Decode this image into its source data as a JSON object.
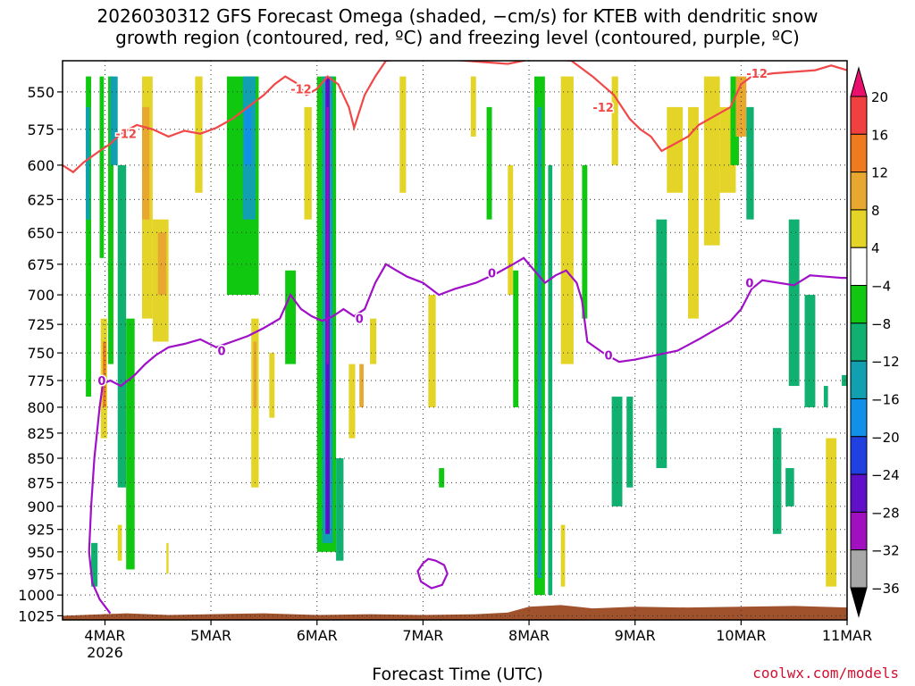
{
  "chart_data": {
    "type": "heatmap",
    "title_line1": "2026030312 GFS Forecast Omega (shaded, −cm/s) for KTEB with dendritic snow",
    "title_line2": "growth region (contoured, red, ºC) and freezing level (contoured, purple, ºC)",
    "xlabel": "Forecast Time (UTC)",
    "credit": "coolwx.com/models",
    "x_ticks": [
      "4MAR",
      "5MAR",
      "6MAR",
      "7MAR",
      "8MAR",
      "9MAR",
      "10MAR",
      "11MAR"
    ],
    "x_year_label": "2026",
    "xlim_days": [
      3.6,
      11.0
    ],
    "y_ticks": [
      550,
      575,
      600,
      625,
      650,
      675,
      700,
      725,
      750,
      775,
      800,
      825,
      850,
      875,
      900,
      925,
      950,
      975,
      1000,
      1025
    ],
    "ylim_hpa": [
      1030,
      530
    ],
    "y_scale": "log-pressure",
    "grid": "dotted",
    "colorbar": {
      "labels": [
        "20",
        "16",
        "12",
        "8",
        "4",
        "−4",
        "−8",
        "−12",
        "−16",
        "−20",
        "−24",
        "−28",
        "−32",
        "−36"
      ],
      "colors": [
        "#e8106c",
        "#f04040",
        "#f07a20",
        "#e8a830",
        "#e4d428",
        "#ffffff",
        "#10c810",
        "#10b070",
        "#10a0b0",
        "#1090e8",
        "#2040e0",
        "#6010c8",
        "#a010c0",
        "#a8a8a8",
        "#000000"
      ]
    },
    "dgz_contour": {
      "label": "-12",
      "color": "#f04848",
      "points": [
        [
          3.6,
          600
        ],
        [
          3.7,
          605
        ],
        [
          3.8,
          598
        ],
        [
          3.95,
          590
        ],
        [
          4.05,
          585
        ],
        [
          4.15,
          578
        ],
        [
          4.3,
          572
        ],
        [
          4.45,
          575
        ],
        [
          4.6,
          580
        ],
        [
          4.75,
          576
        ],
        [
          4.9,
          578
        ],
        [
          5.05,
          574
        ],
        [
          5.2,
          568
        ],
        [
          5.35,
          560
        ],
        [
          5.5,
          552
        ],
        [
          5.6,
          545
        ],
        [
          5.7,
          540
        ],
        [
          5.8,
          544
        ],
        [
          5.9,
          552
        ],
        [
          6.0,
          548
        ],
        [
          6.1,
          540
        ],
        [
          6.2,
          545
        ],
        [
          6.3,
          560
        ],
        [
          6.35,
          574
        ],
        [
          6.45,
          552
        ],
        [
          6.55,
          540
        ],
        [
          6.65,
          530
        ],
        [
          7.0,
          528
        ],
        [
          7.4,
          530
        ],
        [
          7.8,
          532
        ],
        [
          8.1,
          528
        ],
        [
          8.4,
          530
        ],
        [
          8.6,
          540
        ],
        [
          8.8,
          552
        ],
        [
          8.95,
          568
        ],
        [
          9.05,
          575
        ],
        [
          9.15,
          580
        ],
        [
          9.25,
          590
        ],
        [
          9.35,
          586
        ],
        [
          9.5,
          580
        ],
        [
          9.6,
          572
        ],
        [
          9.75,
          566
        ],
        [
          9.9,
          560
        ],
        [
          10.0,
          545
        ],
        [
          10.1,
          540
        ],
        [
          10.3,
          538
        ],
        [
          10.5,
          537
        ],
        [
          10.7,
          536
        ],
        [
          10.85,
          533
        ],
        [
          10.95,
          535
        ],
        [
          11.0,
          536
        ]
      ],
      "labels_at": [
        [
          4.2,
          578
        ],
        [
          5.85,
          548
        ],
        [
          8.7,
          560
        ],
        [
          10.15,
          538
        ]
      ]
    },
    "freezing_contour": {
      "label": "0",
      "color": "#a010c8",
      "points": [
        [
          4.05,
          1022
        ],
        [
          3.95,
          1005
        ],
        [
          3.88,
          985
        ],
        [
          3.85,
          950
        ],
        [
          3.87,
          900
        ],
        [
          3.9,
          850
        ],
        [
          3.95,
          800
        ],
        [
          3.98,
          778
        ],
        [
          4.05,
          775
        ],
        [
          4.15,
          780
        ],
        [
          4.28,
          770
        ],
        [
          4.38,
          760
        ],
        [
          4.48,
          752
        ],
        [
          4.6,
          745
        ],
        [
          4.75,
          742
        ],
        [
          4.9,
          738
        ],
        [
          5.05,
          745
        ],
        [
          5.2,
          740
        ],
        [
          5.35,
          735
        ],
        [
          5.5,
          728
        ],
        [
          5.65,
          720
        ],
        [
          5.75,
          700
        ],
        [
          5.85,
          712
        ],
        [
          5.95,
          718
        ],
        [
          6.05,
          722
        ],
        [
          6.15,
          718
        ],
        [
          6.25,
          712
        ],
        [
          6.35,
          718
        ],
        [
          6.45,
          712
        ],
        [
          6.55,
          690
        ],
        [
          6.65,
          675
        ],
        [
          6.75,
          680
        ],
        [
          6.85,
          685
        ],
        [
          7.0,
          690
        ],
        [
          7.15,
          700
        ],
        [
          7.3,
          695
        ],
        [
          7.5,
          690
        ],
        [
          7.7,
          682
        ],
        [
          7.85,
          675
        ],
        [
          7.95,
          670
        ],
        [
          8.05,
          680
        ],
        [
          8.15,
          690
        ],
        [
          8.25,
          684
        ],
        [
          8.35,
          680
        ],
        [
          8.45,
          690
        ],
        [
          8.5,
          705
        ],
        [
          8.55,
          740
        ],
        [
          8.7,
          750
        ],
        [
          8.85,
          758
        ],
        [
          9.0,
          756
        ],
        [
          9.2,
          752
        ],
        [
          9.4,
          748
        ],
        [
          9.6,
          738
        ],
        [
          9.75,
          730
        ],
        [
          9.9,
          722
        ],
        [
          10.0,
          712
        ],
        [
          10.1,
          695
        ],
        [
          10.2,
          688
        ],
        [
          10.35,
          690
        ],
        [
          10.5,
          692
        ],
        [
          10.65,
          684
        ],
        [
          10.8,
          685
        ],
        [
          10.95,
          686
        ],
        [
          11.0,
          686
        ]
      ],
      "labels_at": [
        [
          3.97,
          775
        ],
        [
          5.1,
          748
        ],
        [
          6.4,
          720
        ],
        [
          7.65,
          682
        ],
        [
          8.75,
          752
        ],
        [
          10.08,
          690
        ]
      ]
    },
    "freezing_loop": [
      [
        7.0,
        963
      ],
      [
        7.05,
        958
      ],
      [
        7.12,
        960
      ],
      [
        7.2,
        965
      ],
      [
        7.23,
        975
      ],
      [
        7.18,
        988
      ],
      [
        7.08,
        992
      ],
      [
        6.98,
        984
      ],
      [
        6.95,
        972
      ],
      [
        7.0,
        963
      ]
    ],
    "omega_cells": [
      {
        "x": [
          3.82,
          3.87
        ],
        "p": [
          540,
          790
        ],
        "v": -6
      },
      {
        "x": [
          3.82,
          3.86
        ],
        "p": [
          560,
          640
        ],
        "v": -14
      },
      {
        "x": [
          3.87,
          3.93
        ],
        "p": [
          940,
          990
        ],
        "v": -8
      },
      {
        "x": [
          3.95,
          3.99
        ],
        "p": [
          540,
          670
        ],
        "v": -6
      },
      {
        "x": [
          4.03,
          4.08
        ],
        "p": [
          540,
          760
        ],
        "v": -6
      },
      {
        "x": [
          4.05,
          4.12
        ],
        "p": [
          540,
          600
        ],
        "v": -14
      },
      {
        "x": [
          4.12,
          4.2
        ],
        "p": [
          600,
          880
        ],
        "v": -8
      },
      {
        "x": [
          4.2,
          4.28
        ],
        "p": [
          720,
          970
        ],
        "v": -6
      },
      {
        "x": [
          3.96,
          4.02
        ],
        "p": [
          720,
          830
        ],
        "v": 6
      },
      {
        "x": [
          3.98,
          4.01
        ],
        "p": [
          740,
          800
        ],
        "v": 12
      },
      {
        "x": [
          4.35,
          4.45
        ],
        "p": [
          540,
          720
        ],
        "v": 6
      },
      {
        "x": [
          4.35,
          4.42
        ],
        "p": [
          560,
          640
        ],
        "v": 11
      },
      {
        "x": [
          4.45,
          4.6
        ],
        "p": [
          640,
          740
        ],
        "v": 6
      },
      {
        "x": [
          4.5,
          4.58
        ],
        "p": [
          650,
          700
        ],
        "v": 9
      },
      {
        "x": [
          4.12,
          4.16
        ],
        "p": [
          920,
          960
        ],
        "v": 5
      },
      {
        "x": [
          4.58,
          4.6
        ],
        "p": [
          940,
          975
        ],
        "v": 5
      },
      {
        "x": [
          4.85,
          4.92
        ],
        "p": [
          540,
          620
        ],
        "v": 5
      },
      {
        "x": [
          5.15,
          5.45
        ],
        "p": [
          540,
          700
        ],
        "v": -6
      },
      {
        "x": [
          5.3,
          5.42
        ],
        "p": [
          540,
          640
        ],
        "v": -14
      },
      {
        "x": [
          5.32,
          5.38
        ],
        "p": [
          560,
          600
        ],
        "v": -18
      },
      {
        "x": [
          5.38,
          5.45
        ],
        "p": [
          720,
          880
        ],
        "v": 5
      },
      {
        "x": [
          5.4,
          5.43
        ],
        "p": [
          740,
          800
        ],
        "v": 10
      },
      {
        "x": [
          5.55,
          5.6
        ],
        "p": [
          750,
          810
        ],
        "v": 5
      },
      {
        "x": [
          5.7,
          5.8
        ],
        "p": [
          680,
          760
        ],
        "v": -6
      },
      {
        "x": [
          5.88,
          5.95
        ],
        "p": [
          560,
          640
        ],
        "v": 5
      },
      {
        "x": [
          6.0,
          6.18
        ],
        "p": [
          540,
          950
        ],
        "v": -6
      },
      {
        "x": [
          6.05,
          6.15
        ],
        "p": [
          540,
          940
        ],
        "v": -14
      },
      {
        "x": [
          6.08,
          6.12
        ],
        "p": [
          540,
          930
        ],
        "v": -24
      },
      {
        "x": [
          6.09,
          6.11
        ],
        "p": [
          560,
          760
        ],
        "v": -30
      },
      {
        "x": [
          6.18,
          6.25
        ],
        "p": [
          850,
          960
        ],
        "v": -8
      },
      {
        "x": [
          6.3,
          6.36
        ],
        "p": [
          760,
          830
        ],
        "v": 6
      },
      {
        "x": [
          6.4,
          6.44
        ],
        "p": [
          760,
          800
        ],
        "v": 8
      },
      {
        "x": [
          6.5,
          6.56
        ],
        "p": [
          720,
          760
        ],
        "v": 4
      },
      {
        "x": [
          6.78,
          6.84
        ],
        "p": [
          540,
          620
        ],
        "v": 5
      },
      {
        "x": [
          7.05,
          7.12
        ],
        "p": [
          700,
          800
        ],
        "v": 6
      },
      {
        "x": [
          7.15,
          7.2
        ],
        "p": [
          860,
          880
        ],
        "v": -6
      },
      {
        "x": [
          7.45,
          7.5
        ],
        "p": [
          540,
          580
        ],
        "v": 5
      },
      {
        "x": [
          7.6,
          7.65
        ],
        "p": [
          560,
          640
        ],
        "v": -6
      },
      {
        "x": [
          7.8,
          7.85
        ],
        "p": [
          600,
          700
        ],
        "v": 5
      },
      {
        "x": [
          7.85,
          7.9
        ],
        "p": [
          680,
          800
        ],
        "v": -6
      },
      {
        "x": [
          8.05,
          8.15
        ],
        "p": [
          540,
          1000
        ],
        "v": -6
      },
      {
        "x": [
          8.08,
          8.12
        ],
        "p": [
          560,
          980
        ],
        "v": -14
      },
      {
        "x": [
          8.18,
          8.22
        ],
        "p": [
          600,
          1000
        ],
        "v": -8
      },
      {
        "x": [
          8.3,
          8.42
        ],
        "p": [
          540,
          760
        ],
        "v": 5
      },
      {
        "x": [
          8.3,
          8.34
        ],
        "p": [
          920,
          990
        ],
        "v": 5
      },
      {
        "x": [
          8.5,
          8.55
        ],
        "p": [
          600,
          720
        ],
        "v": -6
      },
      {
        "x": [
          8.78,
          8.84
        ],
        "p": [
          540,
          600
        ],
        "v": 5
      },
      {
        "x": [
          8.78,
          8.88
        ],
        "p": [
          790,
          900
        ],
        "v": -8
      },
      {
        "x": [
          8.92,
          8.98
        ],
        "p": [
          790,
          880
        ],
        "v": -8
      },
      {
        "x": [
          9.2,
          9.3
        ],
        "p": [
          640,
          860
        ],
        "v": -8
      },
      {
        "x": [
          9.3,
          9.45
        ],
        "p": [
          560,
          620
        ],
        "v": 5
      },
      {
        "x": [
          9.5,
          9.6
        ],
        "p": [
          560,
          720
        ],
        "v": 5
      },
      {
        "x": [
          9.65,
          9.8
        ],
        "p": [
          540,
          660
        ],
        "v": 5
      },
      {
        "x": [
          9.8,
          9.95
        ],
        "p": [
          560,
          620
        ],
        "v": 5
      },
      {
        "x": [
          9.9,
          9.98
        ],
        "p": [
          540,
          600
        ],
        "v": -6
      },
      {
        "x": [
          9.95,
          10.05
        ],
        "p": [
          540,
          580
        ],
        "v": 9
      },
      {
        "x": [
          10.05,
          10.12
        ],
        "p": [
          560,
          640
        ],
        "v": -8
      },
      {
        "x": [
          10.3,
          10.38
        ],
        "p": [
          820,
          930
        ],
        "v": -8
      },
      {
        "x": [
          10.42,
          10.5
        ],
        "p": [
          860,
          900
        ],
        "v": -8
      },
      {
        "x": [
          10.45,
          10.55
        ],
        "p": [
          640,
          780
        ],
        "v": -8
      },
      {
        "x": [
          10.6,
          10.7
        ],
        "p": [
          700,
          800
        ],
        "v": -8
      },
      {
        "x": [
          10.78,
          10.82
        ],
        "p": [
          780,
          800
        ],
        "v": -8
      },
      {
        "x": [
          10.95,
          11.0
        ],
        "p": [
          770,
          780
        ],
        "v": -8
      },
      {
        "x": [
          10.8,
          10.9
        ],
        "p": [
          830,
          990
        ],
        "v": 5
      }
    ],
    "terrain": {
      "color": "#a0522d",
      "points": [
        [
          3.6,
          1025
        ],
        [
          4.2,
          1022
        ],
        [
          4.6,
          1024
        ],
        [
          5.0,
          1023
        ],
        [
          5.5,
          1022
        ],
        [
          6.0,
          1024
        ],
        [
          6.5,
          1023
        ],
        [
          7.0,
          1024
        ],
        [
          7.5,
          1023
        ],
        [
          7.8,
          1021
        ],
        [
          8.0,
          1014
        ],
        [
          8.3,
          1012
        ],
        [
          8.6,
          1016
        ],
        [
          9.0,
          1014
        ],
        [
          9.5,
          1015
        ],
        [
          10.0,
          1014
        ],
        [
          10.5,
          1013
        ],
        [
          11.0,
          1015
        ]
      ]
    }
  }
}
